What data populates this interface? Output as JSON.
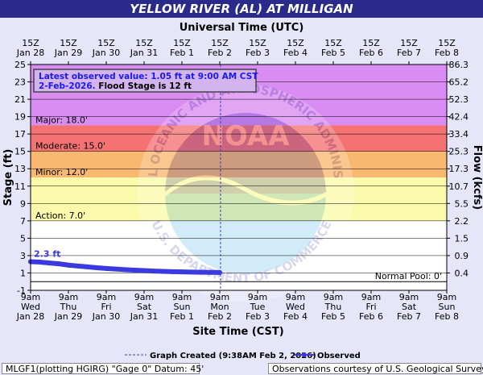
{
  "title": "YELLOW RIVER (AL) AT MILLIGAN",
  "top_axis_title": "Universal Time (UTC)",
  "bottom_axis_title": "Site Time (CST)",
  "left_axis_title": "Stage (ft)",
  "right_axis_title": "Flow (kcfs)",
  "info_box": {
    "line1": "Latest observed value: 1.05 ft at 9:00 AM CST",
    "line2_date": "2-Feb-2026.",
    "line2_rest": " Flood Stage is 12 ft"
  },
  "legend": {
    "graph_created": "Graph Created (9:38AM Feb 2, 2026)",
    "observed": "Observed"
  },
  "footer_left": "MLGF1(plotting HGIRG) \"Gage 0\" Datum: 45'",
  "footer_right": "Observations courtesy of U.S. Geological Survey",
  "watermark": {
    "top_text": "NATIONAL OCEANIC AND ATMOSPHERIC ADMINISTRATION",
    "center_text": "NOAA",
    "bottom_text": "U.S. DEPARTMENT OF COMMERCE"
  },
  "colors": {
    "record": "#d98cf2",
    "major": "#f47272",
    "moderate": "#f8b870",
    "minor": "#fafaaa",
    "observed": "#3a3ae0",
    "now_line": "#4040b0"
  },
  "chart_data": {
    "type": "line",
    "title": "YELLOW RIVER (AL) AT MILLIGAN",
    "ylabel": "Stage (ft)",
    "y2label": "Flow (kcfs)",
    "ylim": [
      -1,
      25
    ],
    "y_ticks": [
      -1,
      1,
      3,
      5,
      7,
      9,
      11,
      13,
      15,
      17,
      19,
      21,
      23,
      25
    ],
    "flow_ticks": [
      {
        "stage": 1,
        "label": "0.4"
      },
      {
        "stage": 3,
        "label": "0.9"
      },
      {
        "stage": 5,
        "label": "1.5"
      },
      {
        "stage": 7,
        "label": "2.2"
      },
      {
        "stage": 9,
        "label": "5.5"
      },
      {
        "stage": 11,
        "label": "10.7"
      },
      {
        "stage": 13,
        "label": "17.3"
      },
      {
        "stage": 15,
        "label": "25.3"
      },
      {
        "stage": 17,
        "label": "33.4"
      },
      {
        "stage": 19,
        "label": "42.4"
      },
      {
        "stage": 21,
        "label": "52.3"
      },
      {
        "stage": 23,
        "label": "65.2"
      },
      {
        "stage": 25,
        "label": "86.3"
      }
    ],
    "x_bottom_ticks": [
      {
        "l1": "9am",
        "l2": "Wed",
        "l3": "Jan 28"
      },
      {
        "l1": "9am",
        "l2": "Thu",
        "l3": "Jan 29"
      },
      {
        "l1": "9am",
        "l2": "Fri",
        "l3": "Jan 30"
      },
      {
        "l1": "9am",
        "l2": "Sat",
        "l3": "Jan 31"
      },
      {
        "l1": "9am",
        "l2": "Sun",
        "l3": "Feb 1"
      },
      {
        "l1": "9am",
        "l2": "Mon",
        "l3": "Feb 2"
      },
      {
        "l1": "9am",
        "l2": "Tue",
        "l3": "Feb 3"
      },
      {
        "l1": "9am",
        "l2": "Wed",
        "l3": "Feb 4"
      },
      {
        "l1": "9am",
        "l2": "Thu",
        "l3": "Feb 5"
      },
      {
        "l1": "9am",
        "l2": "Fri",
        "l3": "Feb 6"
      },
      {
        "l1": "9am",
        "l2": "Sat",
        "l3": "Feb 7"
      },
      {
        "l1": "9am",
        "l2": "Sun",
        "l3": "Feb 8"
      }
    ],
    "x_top_ticks": [
      {
        "l1": "15Z",
        "l2": "Jan 28"
      },
      {
        "l1": "15Z",
        "l2": "Jan 29"
      },
      {
        "l1": "15Z",
        "l2": "Jan 30"
      },
      {
        "l1": "15Z",
        "l2": "Jan 31"
      },
      {
        "l1": "15Z",
        "l2": "Feb 1"
      },
      {
        "l1": "15Z",
        "l2": "Feb 2"
      },
      {
        "l1": "15Z",
        "l2": "Feb 3"
      },
      {
        "l1": "15Z",
        "l2": "Feb 4"
      },
      {
        "l1": "15Z",
        "l2": "Feb 5"
      },
      {
        "l1": "15Z",
        "l2": "Feb 6"
      },
      {
        "l1": "15Z",
        "l2": "Feb 7"
      },
      {
        "l1": "15Z",
        "l2": "Feb 8"
      }
    ],
    "bands": [
      {
        "name": "record",
        "from": 18,
        "to": 25
      },
      {
        "name": "major",
        "from": 15,
        "to": 18
      },
      {
        "name": "moderate",
        "from": 12,
        "to": 15
      },
      {
        "name": "minor",
        "from": 7,
        "to": 12
      }
    ],
    "thresholds": [
      {
        "label": "Major: 18.0'",
        "value": 18
      },
      {
        "label": "Moderate: 15.0'",
        "value": 15
      },
      {
        "label": "Minor: 12.0'",
        "value": 12
      },
      {
        "label": "Action: 7.0'",
        "value": 7
      },
      {
        "label": "Normal Pool: 0'",
        "value": 0
      }
    ],
    "now_day": 5.02,
    "peak_label": "2.3 ft",
    "series": [
      {
        "name": "Observed",
        "points": [
          [
            0.0,
            2.3
          ],
          [
            0.25,
            2.25
          ],
          [
            0.5,
            2.15
          ],
          [
            0.75,
            2.05
          ],
          [
            1.0,
            1.9
          ],
          [
            1.25,
            1.8
          ],
          [
            1.5,
            1.7
          ],
          [
            1.75,
            1.6
          ],
          [
            2.0,
            1.52
          ],
          [
            2.25,
            1.45
          ],
          [
            2.5,
            1.38
          ],
          [
            2.75,
            1.32
          ],
          [
            3.0,
            1.27
          ],
          [
            3.25,
            1.22
          ],
          [
            3.5,
            1.18
          ],
          [
            3.75,
            1.15
          ],
          [
            4.0,
            1.12
          ],
          [
            4.25,
            1.1
          ],
          [
            4.5,
            1.08
          ],
          [
            4.75,
            1.07
          ],
          [
            5.0,
            1.05
          ]
        ]
      }
    ]
  }
}
